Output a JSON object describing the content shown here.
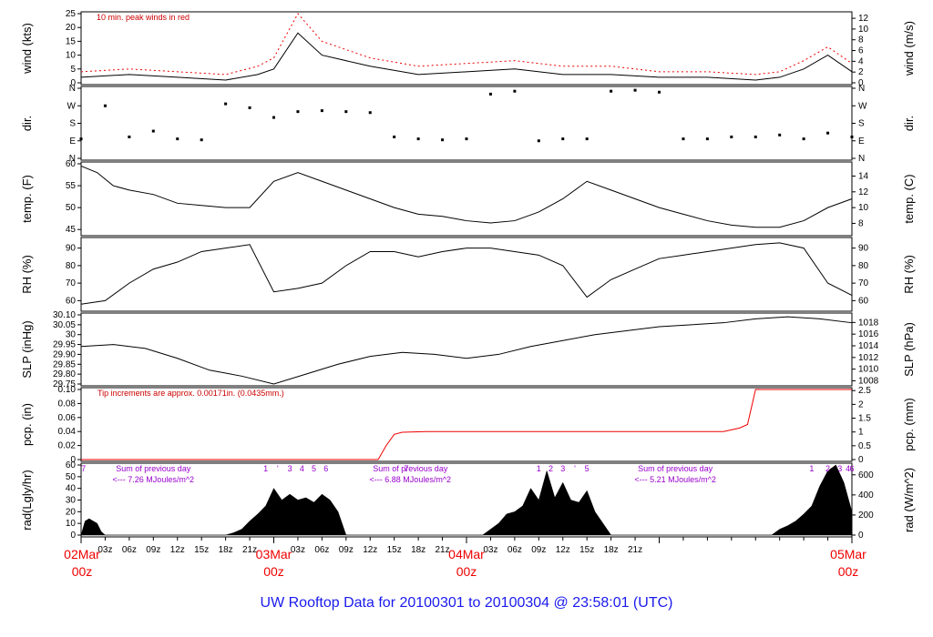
{
  "title": "UW Rooftop Data for 20100301  to  20100304 @ 23:58:01  (UTC)",
  "colors": {
    "series": "#000000",
    "peak": "#ee0000",
    "accent_text": "#cc0000",
    "day_label": "#ee0000",
    "purple": "#9900cc",
    "title": "#1a1aee"
  },
  "chart_data": [
    {
      "type": "line",
      "id": "wind",
      "ylabel_left": "wind (kts)",
      "ylabel_right": "wind (m/s)",
      "ylim": [
        0,
        25
      ],
      "yticks_left": [
        0,
        5,
        10,
        15,
        20,
        25
      ],
      "yticks_right": [
        0,
        2,
        4,
        6,
        8,
        10,
        12
      ],
      "right_scale": 0.5144,
      "annotation": "10 min. peak winds in red",
      "series": [
        {
          "name": "wind",
          "color": "#000000",
          "x": [
            0,
            6,
            12,
            18,
            22,
            24,
            27,
            30,
            36,
            42,
            48,
            54,
            60,
            66,
            72,
            78,
            84,
            87,
            90,
            93,
            96
          ],
          "y": [
            2,
            3,
            2,
            1,
            3,
            5,
            18,
            10,
            6,
            3,
            4,
            5,
            3,
            3,
            2,
            2,
            1,
            2,
            5,
            10,
            4
          ]
        },
        {
          "name": "10 min. peak",
          "color": "#ee0000",
          "x": [
            0,
            6,
            12,
            18,
            22,
            24,
            27,
            30,
            36,
            42,
            48,
            54,
            60,
            66,
            72,
            78,
            84,
            87,
            90,
            93,
            96
          ],
          "y": [
            4,
            5,
            4,
            3,
            6,
            9,
            25,
            15,
            9,
            6,
            7,
            8,
            6,
            6,
            4,
            4,
            3,
            4,
            8,
            13,
            7
          ]
        }
      ]
    },
    {
      "type": "scatter",
      "id": "dir",
      "ylabel_left": "dir.",
      "ylabel_right": "dir.",
      "ylim": [
        0,
        360
      ],
      "ytick_labels": [
        "N",
        "E",
        "S",
        "W",
        "N"
      ],
      "ytick_values": [
        0,
        90,
        180,
        270,
        360
      ],
      "series": [
        {
          "name": "direction",
          "x": [
            0,
            3,
            6,
            9,
            12,
            15,
            18,
            21,
            24,
            27,
            30,
            33,
            36,
            39,
            42,
            45,
            48,
            51,
            54,
            57,
            60,
            63,
            66,
            69,
            72,
            75,
            78,
            81,
            84,
            87,
            90,
            93,
            96
          ],
          "y": [
            100,
            270,
            110,
            140,
            100,
            95,
            280,
            260,
            210,
            240,
            245,
            240,
            235,
            110,
            100,
            95,
            100,
            330,
            345,
            90,
            100,
            100,
            345,
            350,
            340,
            100,
            100,
            110,
            110,
            120,
            100,
            130,
            110
          ]
        }
      ]
    },
    {
      "type": "line",
      "id": "temp",
      "ylabel_left": "temp. (F)",
      "ylabel_right": "temp. (C)",
      "ylim": [
        44,
        60
      ],
      "yticks_left": [
        45,
        50,
        55,
        60
      ],
      "yticks_right": [
        8,
        10,
        12,
        14
      ],
      "series": [
        {
          "name": "temperature",
          "x": [
            0,
            2,
            4,
            6,
            9,
            12,
            15,
            18,
            21,
            24,
            27,
            30,
            33,
            36,
            39,
            42,
            45,
            48,
            51,
            54,
            57,
            60,
            63,
            66,
            69,
            72,
            75,
            78,
            81,
            84,
            87,
            90,
            93,
            96
          ],
          "y": [
            59.5,
            58,
            55,
            54,
            53,
            51,
            50.5,
            50,
            50,
            56,
            58,
            56,
            54,
            52,
            50,
            48.5,
            48,
            47,
            46.5,
            47,
            49,
            52,
            56,
            54,
            52,
            50,
            48.5,
            47,
            46,
            45.5,
            45.5,
            47,
            50,
            52
          ]
        }
      ]
    },
    {
      "type": "line",
      "id": "rh",
      "ylabel_left": "RH (%)",
      "ylabel_right": "RH (%)",
      "ylim": [
        55,
        95
      ],
      "yticks_left": [
        60,
        70,
        80,
        90
      ],
      "yticks_right": [
        60,
        70,
        80,
        90
      ],
      "series": [
        {
          "name": "relative humidity",
          "x": [
            0,
            3,
            6,
            9,
            12,
            15,
            18,
            21,
            24,
            27,
            30,
            33,
            36,
            39,
            42,
            45,
            48,
            51,
            54,
            57,
            60,
            63,
            66,
            69,
            72,
            75,
            78,
            81,
            84,
            87,
            90,
            93,
            96
          ],
          "y": [
            58,
            60,
            70,
            78,
            82,
            88,
            90,
            92,
            65,
            67,
            70,
            80,
            88,
            88,
            85,
            88,
            90,
            90,
            88,
            86,
            80,
            62,
            72,
            78,
            84,
            86,
            88,
            90,
            92,
            93,
            90,
            70,
            63
          ]
        }
      ]
    },
    {
      "type": "line",
      "id": "slp",
      "ylabel_left": "SLP (inHg)",
      "ylabel_right": "SLP (hPa)",
      "ylim": [
        29.75,
        30.1
      ],
      "yticks_left": [
        29.75,
        29.8,
        29.85,
        29.9,
        29.95,
        30.0,
        30.05,
        30.1
      ],
      "yticks_right": [
        1008,
        1010,
        1012,
        1014,
        1016,
        1018
      ],
      "series": [
        {
          "name": "sea level pressure",
          "x": [
            0,
            4,
            8,
            12,
            16,
            20,
            24,
            28,
            32,
            36,
            40,
            44,
            48,
            52,
            56,
            60,
            64,
            68,
            72,
            76,
            80,
            84,
            88,
            92,
            96
          ],
          "y": [
            29.94,
            29.95,
            29.93,
            29.88,
            29.82,
            29.79,
            29.75,
            29.8,
            29.85,
            29.89,
            29.91,
            29.9,
            29.88,
            29.9,
            29.94,
            29.97,
            30.0,
            30.02,
            30.04,
            30.05,
            30.06,
            30.08,
            30.09,
            30.08,
            30.06
          ]
        }
      ]
    },
    {
      "type": "line",
      "id": "pcp",
      "ylabel_left": "pcp. (in)",
      "ylabel_right": "pcp. (mm)",
      "ylim": [
        0,
        0.1
      ],
      "yticks_left": [
        0.0,
        0.02,
        0.04,
        0.06,
        0.08,
        0.1
      ],
      "yticks_right": [
        0,
        0.5,
        1,
        1.5,
        2,
        2.5
      ],
      "annotation": "Tip increments are approx. 0.00171in. (0.0435mm.)",
      "series": [
        {
          "name": "precipitation",
          "color": "#ee0000",
          "x": [
            0,
            37,
            38,
            39,
            40,
            43,
            60,
            80,
            82,
            83,
            84,
            96
          ],
          "y": [
            0,
            0,
            0.02,
            0.036,
            0.039,
            0.04,
            0.04,
            0.04,
            0.045,
            0.05,
            0.1,
            0.1
          ]
        }
      ]
    },
    {
      "type": "area",
      "id": "rad",
      "ylabel_left": "rad(Lgly/hr)",
      "ylabel_right": "rad (W/m^2)",
      "ylim": [
        0,
        60
      ],
      "yticks_left": [
        0,
        10,
        20,
        30,
        40,
        50,
        60
      ],
      "yticks_right": [
        0,
        200,
        400,
        600
      ],
      "day_sums": [
        {
          "text": "Sum of previous day",
          "value": "<--- 7.26 MJoules/m^2"
        },
        {
          "text": "Sum of previous day",
          "value": "<--- 6.88 MJoules/m^2"
        },
        {
          "text": "Sum of previous day",
          "value": "<--- 5.21 MJoules/m^2"
        }
      ],
      "purple_marks": [
        {
          "x": 0.3,
          "label": "7"
        },
        {
          "x": 23,
          "label": "1"
        },
        {
          "x": 24.5,
          "label": "'"
        },
        {
          "x": 26,
          "label": "3"
        },
        {
          "x": 27.5,
          "label": "4"
        },
        {
          "x": 29,
          "label": "5"
        },
        {
          "x": 30.5,
          "label": "6"
        },
        {
          "x": 40.5,
          "label": "7"
        },
        {
          "x": 57,
          "label": "1"
        },
        {
          "x": 58.5,
          "label": "2"
        },
        {
          "x": 60,
          "label": "3"
        },
        {
          "x": 61.5,
          "label": "'"
        },
        {
          "x": 63,
          "label": "5"
        },
        {
          "x": 91,
          "label": "1"
        },
        {
          "x": 93,
          "label": "2"
        },
        {
          "x": 94.5,
          "label": "3"
        },
        {
          "x": 95.5,
          "label": "4"
        },
        {
          "x": 96,
          "label": "6"
        }
      ],
      "series": [
        {
          "name": "solar radiation",
          "x": [
            0,
            0.5,
            1,
            2,
            2.5,
            3,
            18,
            19,
            20,
            21,
            22,
            23,
            24,
            25,
            26,
            27,
            28,
            29,
            30,
            31,
            32,
            33,
            42,
            50,
            51,
            52,
            53,
            54,
            55,
            56,
            57,
            58,
            59,
            60,
            61,
            62,
            63,
            64,
            65,
            66,
            67,
            74,
            86,
            87,
            88,
            89,
            90,
            91,
            92,
            93,
            94,
            95,
            96
          ],
          "y": [
            0,
            12,
            14,
            10,
            3,
            0,
            0,
            2,
            5,
            12,
            18,
            25,
            40,
            30,
            35,
            30,
            32,
            28,
            35,
            30,
            20,
            0,
            0,
            0,
            5,
            10,
            18,
            20,
            25,
            40,
            30,
            55,
            32,
            45,
            30,
            28,
            38,
            20,
            10,
            0,
            0,
            0,
            0,
            5,
            8,
            12,
            18,
            25,
            42,
            55,
            60,
            45,
            20
          ]
        }
      ]
    }
  ],
  "x_axis": {
    "hour_labels": [
      "03z",
      "06z",
      "09z",
      "12z",
      "15z",
      "18z",
      "21z",
      "03z",
      "06z",
      "09z",
      "12z",
      "15z",
      "18z",
      "21z",
      "03z",
      "06z",
      "09z",
      "12z",
      "15z",
      "18z",
      "21z"
    ],
    "date_labels": [
      {
        "date": "02Mar",
        "hour": "00z"
      },
      {
        "date": "03Mar",
        "hour": "00z"
      },
      {
        "date": "04Mar",
        "hour": "00z"
      },
      {
        "date": "05Mar",
        "hour": "00z"
      }
    ]
  }
}
